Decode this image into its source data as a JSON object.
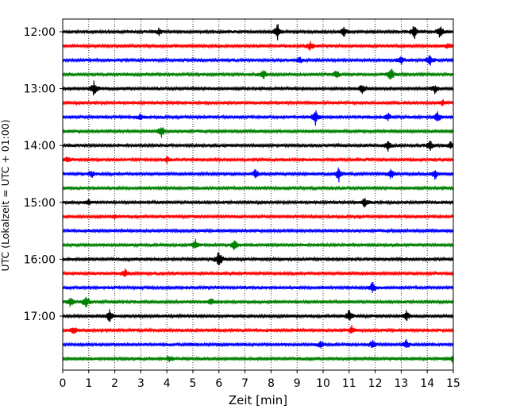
{
  "chart_data": {
    "type": "line",
    "xlabel": "Zeit  [min]",
    "ylabel": "UTC (Lokalzeit = UTC + 01:00)",
    "xlim": [
      0,
      15
    ],
    "x_ticks": [
      "0",
      "1",
      "2",
      "3",
      "4",
      "5",
      "6",
      "7",
      "8",
      "9",
      "10",
      "11",
      "12",
      "13",
      "14",
      "15"
    ],
    "y_tick_labels": [
      "12:00",
      "13:00",
      "14:00",
      "15:00",
      "16:00",
      "17:00"
    ],
    "y_tick_rows": [
      0,
      4,
      8,
      12,
      16,
      20
    ],
    "vertical_grid": true,
    "grid_style": "dotted",
    "row_interval_minutes": 15,
    "start_time": "12:00",
    "row_count": 24,
    "trace_colors": [
      "#000000",
      "#ff0000",
      "#0000ff",
      "#008000"
    ],
    "events": [
      {
        "row": 0,
        "x": 8.25,
        "amp": 1.0
      },
      {
        "row": 0,
        "x": 13.5,
        "amp": 0.9
      },
      {
        "row": 0,
        "x": 14.5,
        "amp": 0.85
      },
      {
        "row": 0,
        "x": 10.8,
        "amp": 0.6
      },
      {
        "row": 0,
        "x": 3.7,
        "amp": 0.4
      },
      {
        "row": 1,
        "x": 9.5,
        "amp": 0.5
      },
      {
        "row": 1,
        "x": 14.8,
        "amp": 0.3
      },
      {
        "row": 2,
        "x": 13.0,
        "amp": 0.5
      },
      {
        "row": 2,
        "x": 14.1,
        "amp": 0.7
      },
      {
        "row": 2,
        "x": 9.1,
        "amp": 0.3
      },
      {
        "row": 3,
        "x": 12.6,
        "amp": 0.85
      },
      {
        "row": 3,
        "x": 7.7,
        "amp": 0.6
      },
      {
        "row": 3,
        "x": 10.5,
        "amp": 0.5
      },
      {
        "row": 4,
        "x": 1.2,
        "amp": 0.8
      },
      {
        "row": 4,
        "x": 11.5,
        "amp": 0.6
      },
      {
        "row": 4,
        "x": 14.3,
        "amp": 0.5
      },
      {
        "row": 5,
        "x": 14.6,
        "amp": 0.3
      },
      {
        "row": 6,
        "x": 9.7,
        "amp": 0.9
      },
      {
        "row": 6,
        "x": 14.4,
        "amp": 0.6
      },
      {
        "row": 6,
        "x": 12.5,
        "amp": 0.5
      },
      {
        "row": 6,
        "x": 3.0,
        "amp": 0.4
      },
      {
        "row": 7,
        "x": 3.8,
        "amp": 0.7
      },
      {
        "row": 8,
        "x": 12.5,
        "amp": 0.6
      },
      {
        "row": 8,
        "x": 14.1,
        "amp": 0.6
      },
      {
        "row": 8,
        "x": 14.9,
        "amp": 0.5
      },
      {
        "row": 9,
        "x": 0.2,
        "amp": 0.4
      },
      {
        "row": 9,
        "x": 4.0,
        "amp": 0.3
      },
      {
        "row": 10,
        "x": 10.6,
        "amp": 0.85
      },
      {
        "row": 10,
        "x": 12.6,
        "amp": 0.6
      },
      {
        "row": 10,
        "x": 14.3,
        "amp": 0.6
      },
      {
        "row": 10,
        "x": 1.1,
        "amp": 0.5
      },
      {
        "row": 10,
        "x": 7.4,
        "amp": 0.5
      },
      {
        "row": 12,
        "x": 11.6,
        "amp": 0.5
      },
      {
        "row": 12,
        "x": 1.0,
        "amp": 0.3
      },
      {
        "row": 13,
        "x": 2.0,
        "amp": 0.2
      },
      {
        "row": 15,
        "x": 5.1,
        "amp": 0.6
      },
      {
        "row": 15,
        "x": 6.6,
        "amp": 0.7
      },
      {
        "row": 16,
        "x": 6.0,
        "amp": 1.0
      },
      {
        "row": 17,
        "x": 2.4,
        "amp": 0.5
      },
      {
        "row": 18,
        "x": 11.9,
        "amp": 0.6
      },
      {
        "row": 19,
        "x": 0.9,
        "amp": 0.8
      },
      {
        "row": 19,
        "x": 0.3,
        "amp": 0.6
      },
      {
        "row": 19,
        "x": 5.7,
        "amp": 0.4
      },
      {
        "row": 20,
        "x": 1.8,
        "amp": 0.7
      },
      {
        "row": 20,
        "x": 11.0,
        "amp": 0.7
      },
      {
        "row": 20,
        "x": 13.2,
        "amp": 0.6
      },
      {
        "row": 21,
        "x": 0.4,
        "amp": 0.5
      },
      {
        "row": 21,
        "x": 11.1,
        "amp": 0.5
      },
      {
        "row": 22,
        "x": 9.9,
        "amp": 0.4
      },
      {
        "row": 22,
        "x": 11.9,
        "amp": 0.5
      },
      {
        "row": 22,
        "x": 13.2,
        "amp": 0.5
      },
      {
        "row": 23,
        "x": 4.1,
        "amp": 0.4
      },
      {
        "row": 23,
        "x": 15.0,
        "amp": 0.5
      }
    ]
  }
}
